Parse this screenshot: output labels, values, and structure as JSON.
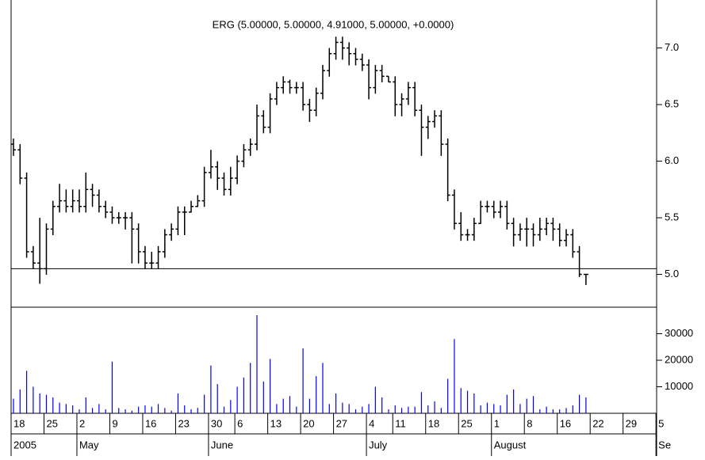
{
  "chart_data": {
    "type": "ohlc",
    "title": "ERG (5.00000, 5.00000, 4.91000, 5.00000, +0.0000)",
    "categories": [
      "18",
      null,
      null,
      null,
      null,
      "25",
      null,
      null,
      null,
      null,
      "2",
      null,
      null,
      null,
      null,
      "9",
      null,
      null,
      null,
      null,
      "16",
      null,
      null,
      null,
      null,
      "23",
      null,
      null,
      null,
      null,
      "30",
      null,
      null,
      null,
      "6",
      null,
      null,
      null,
      null,
      "13",
      null,
      null,
      null,
      null,
      "20",
      null,
      null,
      null,
      null,
      "27",
      null,
      null,
      null,
      null,
      "4",
      null,
      null,
      null,
      "11",
      null,
      null,
      null,
      null,
      "18",
      null,
      null,
      null,
      null,
      "25",
      null,
      null,
      null,
      null,
      "1",
      null,
      null,
      null,
      null,
      "8",
      null,
      null,
      null,
      null,
      "16",
      null,
      null,
      null,
      null,
      "22",
      null,
      null,
      null,
      null,
      "29",
      null,
      null,
      null,
      null,
      "5"
    ],
    "month_ticks": [
      {
        "value": 0,
        "label": "2005"
      },
      {
        "value": 10,
        "label": "May"
      },
      {
        "value": 30,
        "label": "June"
      },
      {
        "value": 54,
        "label": "July"
      },
      {
        "value": 73,
        "label": "August"
      },
      {
        "value": 98,
        "label": "Se"
      }
    ],
    "open": [
      6.15,
      6.1,
      5.85,
      5.2,
      5.1,
      5.05,
      5.4,
      5.6,
      5.65,
      5.6,
      5.65,
      5.6,
      5.75,
      5.7,
      5.6,
      5.55,
      5.5,
      5.5,
      5.5,
      5.4,
      5.2,
      5.1,
      5.1,
      5.2,
      5.35,
      5.4,
      5.55,
      5.55,
      5.6,
      5.65,
      5.9,
      5.95,
      5.85,
      5.75,
      5.85,
      6.0,
      6.1,
      6.15,
      6.4,
      6.3,
      6.55,
      6.65,
      6.7,
      6.65,
      6.65,
      6.5,
      6.45,
      6.6,
      6.8,
      6.95,
      7.05,
      7.0,
      6.95,
      6.9,
      6.85,
      6.65,
      6.8,
      6.75,
      6.7,
      6.5,
      6.55,
      6.65,
      6.45,
      6.3,
      6.35,
      6.4,
      6.15,
      5.7,
      5.45,
      5.35,
      5.35,
      5.45,
      5.6,
      5.6,
      5.55,
      5.6,
      5.45,
      5.35,
      5.4,
      5.4,
      5.35,
      5.4,
      5.45,
      5.4,
      5.3,
      5.35,
      5.2,
      5.0,
      null,
      null,
      null,
      null,
      null,
      null,
      null,
      null,
      null,
      null,
      null
    ],
    "high": [
      6.2,
      6.15,
      5.9,
      5.25,
      5.5,
      5.45,
      5.65,
      5.8,
      5.75,
      5.75,
      5.75,
      5.9,
      5.8,
      5.75,
      5.65,
      5.6,
      5.55,
      5.55,
      5.55,
      5.45,
      5.25,
      5.2,
      5.25,
      5.4,
      5.45,
      5.6,
      5.6,
      5.65,
      5.7,
      5.95,
      6.1,
      6.0,
      5.9,
      5.95,
      6.05,
      6.15,
      6.2,
      6.5,
      6.45,
      6.6,
      6.7,
      6.75,
      6.72,
      6.7,
      6.7,
      6.55,
      6.65,
      6.85,
      7.0,
      7.1,
      7.1,
      7.05,
      7.0,
      6.95,
      6.9,
      6.85,
      6.85,
      6.75,
      6.75,
      6.6,
      6.7,
      6.7,
      6.5,
      6.4,
      6.45,
      6.45,
      6.2,
      5.75,
      5.55,
      5.4,
      5.5,
      5.65,
      5.65,
      5.65,
      5.65,
      5.65,
      5.5,
      5.45,
      5.5,
      5.45,
      5.5,
      5.5,
      5.5,
      5.45,
      5.4,
      5.4,
      5.25,
      5.0,
      null,
      null,
      null,
      null,
      null,
      null,
      null,
      null,
      null,
      null,
      null
    ],
    "low": [
      6.05,
      5.8,
      5.15,
      5.05,
      4.92,
      5.0,
      5.35,
      5.55,
      5.55,
      5.55,
      5.55,
      5.55,
      5.6,
      5.55,
      5.5,
      5.45,
      5.45,
      5.4,
      5.1,
      5.1,
      5.05,
      5.05,
      5.05,
      5.15,
      5.3,
      5.35,
      5.35,
      5.55,
      5.6,
      5.6,
      5.85,
      5.75,
      5.7,
      5.7,
      5.8,
      5.95,
      6.05,
      6.1,
      6.25,
      6.25,
      6.5,
      6.6,
      6.6,
      6.6,
      6.45,
      6.35,
      6.4,
      6.55,
      6.75,
      6.9,
      6.9,
      6.85,
      6.85,
      6.8,
      6.55,
      6.6,
      6.7,
      6.7,
      6.4,
      6.4,
      6.5,
      6.4,
      6.05,
      6.2,
      6.3,
      6.05,
      5.65,
      5.4,
      5.3,
      5.3,
      5.3,
      5.45,
      5.55,
      5.5,
      5.5,
      5.4,
      5.25,
      5.3,
      5.25,
      5.25,
      5.3,
      5.35,
      5.3,
      5.25,
      5.25,
      5.15,
      4.98,
      4.91,
      null,
      null,
      null,
      null,
      null,
      null,
      null,
      null,
      null,
      null,
      null
    ],
    "close": [
      6.1,
      5.85,
      5.2,
      5.1,
      5.05,
      5.4,
      5.6,
      5.65,
      5.6,
      5.65,
      5.6,
      5.75,
      5.7,
      5.6,
      5.55,
      5.5,
      5.5,
      5.5,
      5.4,
      5.2,
      5.1,
      5.1,
      5.2,
      5.35,
      5.4,
      5.55,
      5.55,
      5.6,
      5.65,
      5.9,
      5.95,
      5.85,
      5.75,
      5.85,
      6.0,
      6.1,
      6.15,
      6.4,
      6.3,
      6.55,
      6.65,
      6.7,
      6.65,
      6.65,
      6.5,
      6.45,
      6.6,
      6.8,
      6.95,
      7.05,
      7.0,
      6.95,
      6.9,
      6.85,
      6.65,
      6.8,
      6.75,
      6.7,
      6.5,
      6.55,
      6.65,
      6.45,
      6.3,
      6.35,
      6.4,
      6.15,
      5.7,
      5.45,
      5.35,
      5.35,
      5.45,
      5.6,
      5.6,
      5.55,
      5.6,
      5.45,
      5.35,
      5.4,
      5.4,
      5.35,
      5.4,
      5.45,
      5.4,
      5.3,
      5.35,
      5.2,
      5.0,
      5.0,
      null,
      null,
      null,
      null,
      null,
      null,
      null,
      null,
      null,
      null,
      null
    ],
    "volume": [
      5500,
      9000,
      16000,
      10000,
      7500,
      7000,
      6000,
      4000,
      3500,
      3000,
      1500,
      6000,
      2000,
      3500,
      1500,
      19500,
      2000,
      1500,
      1000,
      2500,
      3000,
      2500,
      3500,
      2000,
      1000,
      7500,
      3000,
      1500,
      2000,
      7000,
      18000,
      11000,
      2500,
      5000,
      10000,
      13500,
      19000,
      37000,
      12000,
      20500,
      3500,
      5500,
      6500,
      2500,
      24500,
      5500,
      14000,
      19000,
      3500,
      7500,
      4000,
      3500,
      1500,
      2500,
      3500,
      10000,
      6000,
      1500,
      3000,
      2000,
      2500,
      2500,
      8000,
      3000,
      4500,
      2000,
      13000,
      28000,
      9500,
      8500,
      7500,
      3000,
      4000,
      3500,
      3000,
      7000,
      9000,
      3500,
      5500,
      6500,
      1500,
      2500,
      1500,
      1500,
      2000,
      3000,
      7000,
      6000,
      null,
      null,
      null,
      null,
      null,
      null,
      null,
      null,
      null,
      null,
      null
    ],
    "color": "#000000",
    "volume_color": "#0000ff",
    "reference_line": 5.05,
    "ylim": [
      4.71,
      7.34
    ],
    "yticks": [
      {
        "value": 5.0,
        "label": "5.0"
      },
      5.5,
      {
        "value": 6.0,
        "label": "6.0"
      },
      6.5,
      {
        "value": 7.0,
        "label": "7.0"
      }
    ],
    "y2lim": [
      0,
      40000
    ],
    "y2ticks": [
      10000,
      20000,
      30000
    ]
  }
}
